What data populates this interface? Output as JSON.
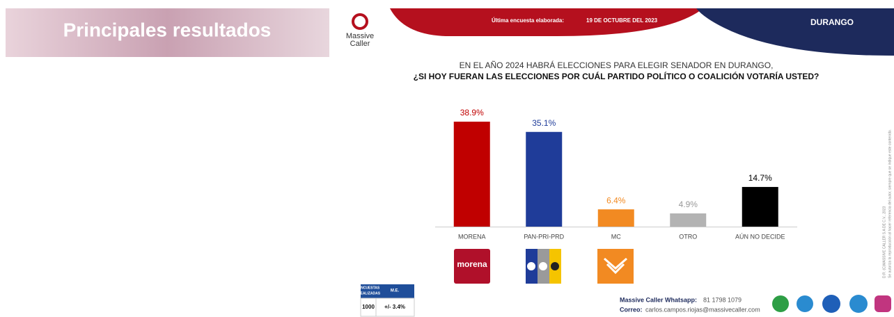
{
  "header": {
    "title": "Principales resultados",
    "survey_label": "Última encuesta elaborada:",
    "survey_date": "19 DE OCTUBRE DEL 2023",
    "region": "DURANGO",
    "brand_1": "Massive",
    "brand_2": "Caller"
  },
  "chart_data": {
    "type": "bar",
    "title": "EN EL AÑO 2024 HABRÁ ELECCIONES PARA ELEGIR SENADOR EN DURANGO,",
    "subtitle": "¿SI HOY FUERAN LAS ELECCIONES POR CUÁL PARTIDO POLÍTICO O COALICIÓN  VOTARÍA USTED?",
    "categories": [
      "MORENA",
      "PAN-PRI-PRD",
      "MC",
      "OTRO",
      "AÚN NO DECIDE"
    ],
    "values": [
      38.9,
      35.1,
      6.4,
      4.9,
      14.7
    ],
    "value_labels": [
      "38.9%",
      "35.1%",
      "6.4%",
      "4.9%",
      "14.7%"
    ],
    "colors": [
      "#c00000",
      "#1f3c99",
      "#f28a22",
      "#b3b3b3",
      "#000000"
    ]
  },
  "logos": {
    "morena": "morena"
  },
  "table": {
    "headers": [
      [
        "ENCUESTAS",
        "REALIZADAS"
      ],
      "M.E."
    ],
    "row": [
      "1000",
      "+/- 3.4%"
    ]
  },
  "footer": {
    "whatsapp_label": "Massive Caller Whatsapp:",
    "whatsapp": "81 1798 1079",
    "email_label": "Correo:",
    "email": "carlos.campos.riojas@massivecaller.com"
  },
  "side_note": [
    "D.R. (C)MASSIVE CALLER S.A DE C.V., 2023",
    "Se autoriza la reproducción al hacer referencia del autor, siempre que se indique este contenido."
  ]
}
